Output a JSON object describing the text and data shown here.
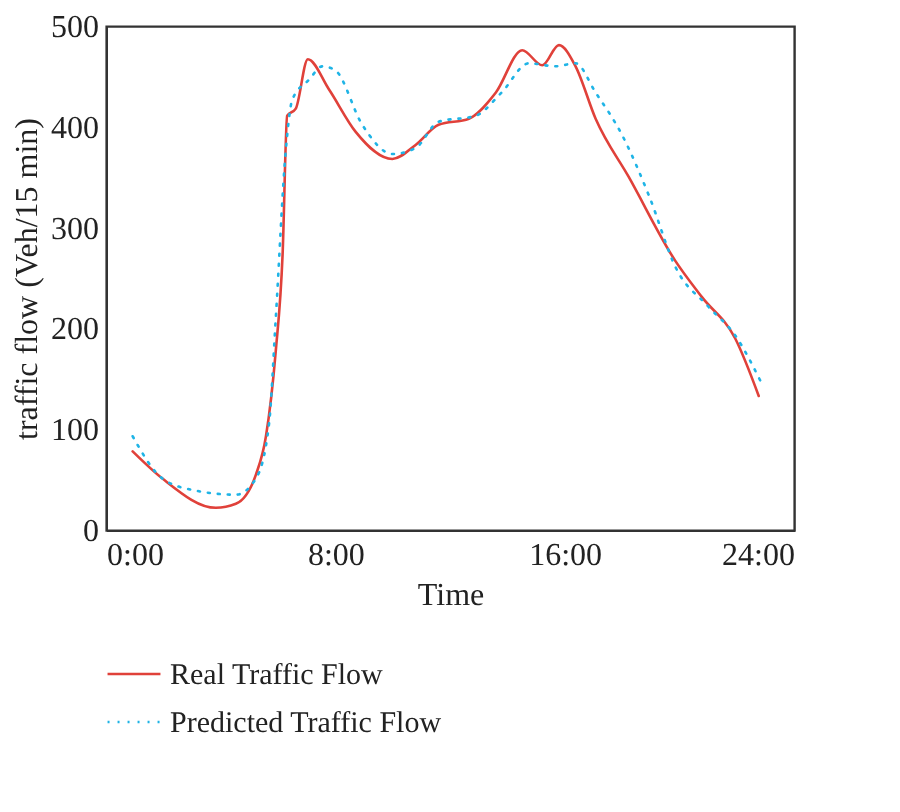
{
  "chart_data": {
    "type": "line",
    "xlabel": "Time",
    "ylabel": "traffic flow (Veh/15 min)",
    "xlim": [
      0,
      24
    ],
    "xticks": [
      {
        "value": 0,
        "label": "0:00"
      },
      {
        "value": 8,
        "label": "8:00"
      },
      {
        "value": 16,
        "label": "16:00"
      },
      {
        "value": 24,
        "label": "24:00"
      }
    ],
    "ylim": [
      0,
      500
    ],
    "yticks": [
      0,
      100,
      200,
      300,
      400,
      500
    ],
    "grid": false,
    "legend": "bottom",
    "series": [
      {
        "name": "Real Traffic Flow",
        "color": "#e0413a",
        "line_style": "solid",
        "x": [
          0.93,
          1.97,
          3.83,
          4.53,
          5.23,
          5.58,
          5.92,
          6.16,
          6.32,
          6.62,
          7.04,
          7.78,
          8.71,
          9.99,
          10.8,
          11.6,
          12.66,
          13.6,
          14.52,
          15.22,
          15.8,
          16.38,
          17.08,
          18.24,
          19.86,
          20.79,
          21.95,
          22.77
        ],
        "values": [
          78,
          51,
          22,
          26,
          55,
          93,
          177,
          273,
          411,
          418,
          467,
          437,
          395,
          368,
          382,
          402,
          408,
          434,
          476,
          461,
          481,
          460,
          408,
          350,
          267,
          231,
          190,
          133
        ]
      },
      {
        "name": "Predicted Traffic Flow",
        "color": "#1fb4e6",
        "line_style": "dotted",
        "x": [
          0.93,
          1.97,
          3.14,
          4.53,
          5.23,
          5.69,
          5.92,
          6.27,
          6.5,
          7.09,
          7.55,
          8.0,
          8.94,
          9.99,
          10.8,
          11.6,
          12.9,
          13.8,
          14.75,
          15.68,
          16.38,
          17.08,
          18.0,
          18.95,
          19.88,
          21.0,
          21.95,
          22.88
        ],
        "values": [
          93,
          51,
          39,
          35,
          51,
          106,
          209,
          376,
          427,
          447,
          460,
          456,
          402,
          373,
          379,
          405,
          411,
          434,
          463,
          460,
          463,
          434,
          392,
          331,
          260,
          222,
          193,
          145
        ]
      }
    ]
  }
}
